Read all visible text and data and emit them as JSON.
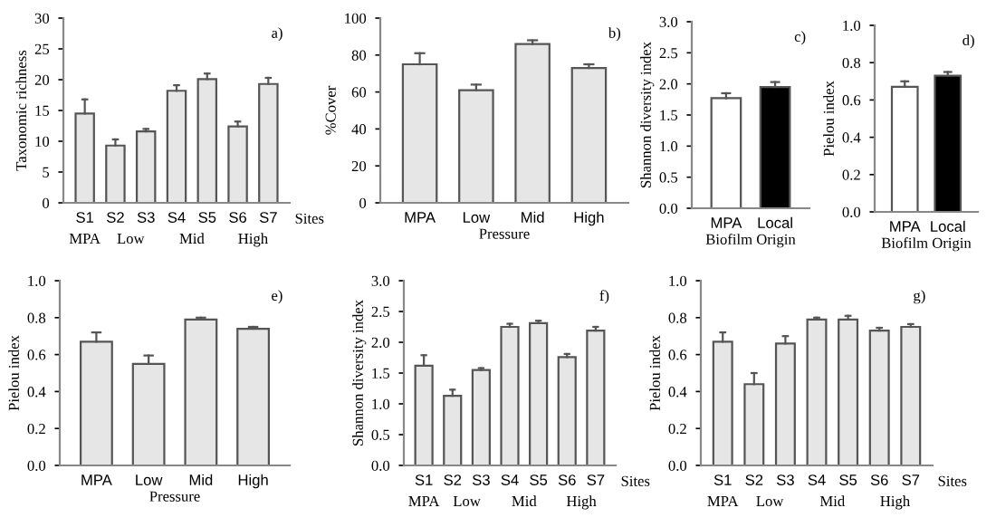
{
  "chart_data": [
    {
      "type": "bar",
      "ylabel": "Taxonomic richness",
      "categories": [
        "S1",
        "S2",
        "S3",
        "S4",
        "S5",
        "S6",
        "S7"
      ],
      "values": [
        14.5,
        9.3,
        11.6,
        18.2,
        20.1,
        12.4,
        19.3
      ],
      "errors": [
        [
          14.5,
          16.8
        ],
        [
          9.3,
          10.3
        ],
        [
          11.6,
          12.0
        ],
        [
          18.2,
          19.1
        ],
        [
          20.1,
          21.0
        ],
        [
          12.4,
          13.2
        ],
        [
          19.3,
          20.3
        ]
      ],
      "color": "#e6e6e6",
      "ylim": [
        0,
        30
      ],
      "yticks": [
        0,
        5,
        10,
        15,
        20,
        25,
        30
      ],
      "grid": false,
      "legend": false,
      "annotations": [
        "a)",
        "Sites",
        "MPA",
        "Low",
        "Mid",
        "High"
      ]
    },
    {
      "type": "bar",
      "ylabel": "%Cover",
      "xlabel": "Pressure",
      "categories": [
        "MPA",
        "Low",
        "Mid",
        "High"
      ],
      "values": [
        75,
        61,
        86,
        73
      ],
      "errors": [
        [
          75,
          81
        ],
        [
          61,
          64
        ],
        [
          86,
          88
        ],
        [
          73,
          75
        ]
      ],
      "color": "#e6e6e6",
      "ylim": [
        0,
        100
      ],
      "yticks": [
        0,
        20,
        40,
        60,
        80,
        100
      ],
      "grid": false,
      "legend": false,
      "annotations": [
        "b)"
      ]
    },
    {
      "type": "bar",
      "ylabel": "Shannon diversity index",
      "xlabel": "Biofilm Origin",
      "categories": [
        "MPA",
        "Local"
      ],
      "values": [
        1.77,
        1.95
      ],
      "errors": [
        [
          1.77,
          1.85
        ],
        [
          1.95,
          2.03
        ]
      ],
      "colors": [
        "#ffffff",
        "#000000"
      ],
      "ylim": [
        0,
        3
      ],
      "yticks": [
        {
          "value": 0,
          "label": "0.0"
        },
        0.5,
        {
          "value": 1,
          "label": "1.0"
        },
        1.5,
        {
          "value": 2,
          "label": "2.0"
        },
        2.5,
        {
          "value": 3,
          "label": "3.0"
        }
      ],
      "grid": false,
      "legend": false,
      "annotations": [
        "c)"
      ]
    },
    {
      "type": "bar",
      "ylabel": "Pielou index",
      "xlabel": "Biofilm Origin",
      "categories": [
        "MPA",
        "Local"
      ],
      "values": [
        0.67,
        0.73
      ],
      "errors": [
        [
          0.67,
          0.7
        ],
        [
          0.73,
          0.75
        ]
      ],
      "colors": [
        "#ffffff",
        "#000000"
      ],
      "ylim": [
        0,
        1
      ],
      "yticks": [
        {
          "value": 0,
          "label": "0.0"
        },
        0.2,
        0.4,
        0.6,
        0.8,
        {
          "value": 1,
          "label": "1.0"
        }
      ],
      "grid": false,
      "legend": false,
      "annotations": [
        "d)"
      ]
    },
    {
      "type": "bar",
      "ylabel": "Pielou index",
      "xlabel": "Pressure",
      "categories": [
        "MPA",
        "Low",
        "Mid",
        "High"
      ],
      "values": [
        0.67,
        0.55,
        0.79,
        0.74
      ],
      "errors": [
        [
          0.67,
          0.72
        ],
        [
          0.55,
          0.595
        ],
        [
          0.79,
          0.8
        ],
        [
          0.74,
          0.75
        ]
      ],
      "color": "#e6e6e6",
      "ylim": [
        0,
        1
      ],
      "yticks": [
        {
          "value": 0,
          "label": "0.0"
        },
        0.2,
        0.4,
        0.6,
        0.8,
        {
          "value": 1,
          "label": "1.0"
        }
      ],
      "grid": false,
      "legend": false,
      "annotations": [
        "e)"
      ]
    },
    {
      "type": "bar",
      "ylabel": "Shannon diversity index",
      "categories": [
        "S1",
        "S2",
        "S3",
        "S4",
        "S5",
        "S6",
        "S7"
      ],
      "values": [
        1.62,
        1.13,
        1.55,
        2.25,
        2.31,
        1.76,
        2.19
      ],
      "errors": [
        [
          1.62,
          1.79
        ],
        [
          1.13,
          1.23
        ],
        [
          1.55,
          1.58
        ],
        [
          2.25,
          2.3
        ],
        [
          2.31,
          2.35
        ],
        [
          1.76,
          1.81
        ],
        [
          2.19,
          2.25
        ]
      ],
      "color": "#e6e6e6",
      "ylim": [
        0,
        3
      ],
      "yticks": [
        {
          "value": 0,
          "label": "0.0"
        },
        0.5,
        {
          "value": 1,
          "label": "1.0"
        },
        1.5,
        {
          "value": 2,
          "label": "2.0"
        },
        2.5,
        {
          "value": 3,
          "label": "3.0"
        }
      ],
      "grid": false,
      "legend": false,
      "annotations": [
        "f)",
        "Sites",
        "MPA",
        "Low",
        "Mid",
        "High"
      ]
    },
    {
      "type": "bar",
      "ylabel": "Pielou index",
      "categories": [
        "S1",
        "S2",
        "S3",
        "S4",
        "S5",
        "S6",
        "S7"
      ],
      "values": [
        0.67,
        0.44,
        0.66,
        0.79,
        0.79,
        0.73,
        0.75
      ],
      "errors": [
        [
          0.67,
          0.72
        ],
        [
          0.44,
          0.5
        ],
        [
          0.66,
          0.7
        ],
        [
          0.79,
          0.8
        ],
        [
          0.79,
          0.81
        ],
        [
          0.73,
          0.745
        ],
        [
          0.75,
          0.765
        ]
      ],
      "color": "#e6e6e6",
      "ylim": [
        0,
        1
      ],
      "yticks": [
        {
          "value": 0,
          "label": "0.0"
        },
        0.2,
        0.4,
        0.6,
        0.8,
        {
          "value": 1,
          "label": "1.0"
        }
      ],
      "grid": false,
      "legend": false,
      "annotations": [
        "g)",
        "Sites",
        "MPA",
        "Low",
        "Mid",
        "High"
      ]
    }
  ]
}
